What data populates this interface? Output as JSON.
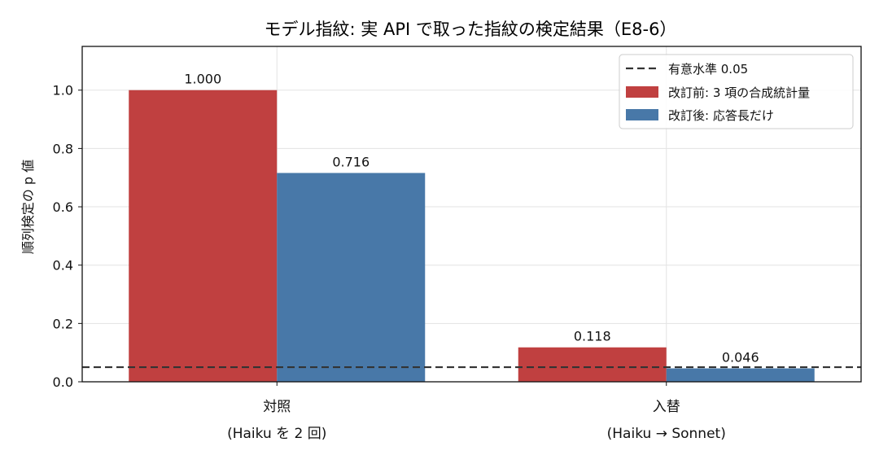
{
  "chart_data": {
    "type": "bar",
    "title": "モデル指紋: 実 API で取った指紋の検定結果（E8-6）",
    "ylabel": "順列検定の p 値",
    "xlabel": "",
    "ylim": [
      0,
      1.15
    ],
    "yticks": [
      "0.0",
      "0.2",
      "0.4",
      "0.6",
      "0.8",
      "1.0"
    ],
    "grid": true,
    "legend_position": "top-right",
    "categories": [
      {
        "line1": "対照",
        "line2": "(Haiku を 2 回)"
      },
      {
        "line1": "入替",
        "line2": "(Haiku → Sonnet)"
      }
    ],
    "series": [
      {
        "name": "改訂前: 3 項の合成統計量",
        "color": "#c04040",
        "values": [
          1.0,
          0.118
        ],
        "labels": [
          "1.000",
          "0.118"
        ]
      },
      {
        "name": "改訂後: 応答長だけ",
        "color": "#4878a8",
        "values": [
          0.716,
          0.046
        ],
        "labels": [
          "0.716",
          "0.046"
        ]
      }
    ],
    "threshold": {
      "name": "有意水準 0.05",
      "value": 0.05,
      "color": "#333333"
    }
  }
}
